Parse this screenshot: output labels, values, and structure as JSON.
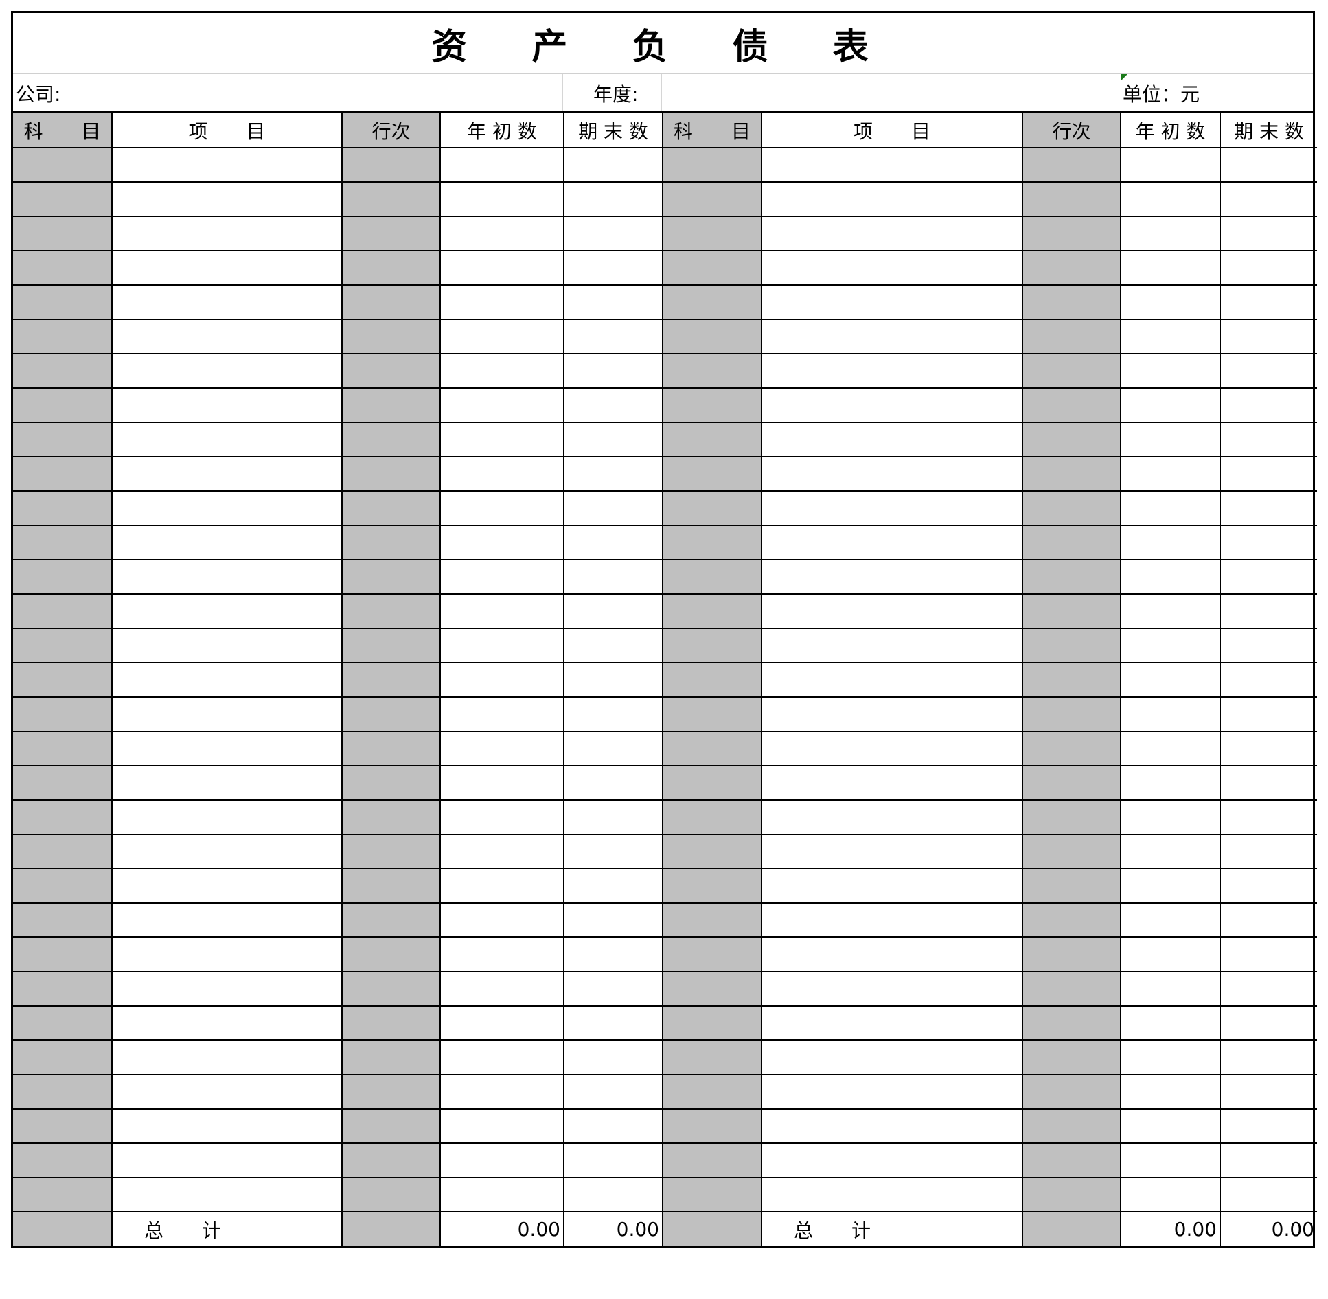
{
  "title": "资 产 负 债 表",
  "info": {
    "company_label": "公司:",
    "year_label": "年度:",
    "unit_label": "单位：元"
  },
  "headers": [
    "科　　目",
    "项　　目",
    "行次",
    "年 初 数",
    "期 末 数",
    "科　　目",
    "项　　目",
    "行次",
    "年 初 数",
    "期 末 数"
  ],
  "data_row_count": 31,
  "total_row": {
    "left_label": "总　　计",
    "left_begin": "0.00",
    "left_end": "0.00",
    "right_label": "总　　计",
    "right_begin": "0.00",
    "right_end": "0.00"
  },
  "colors": {
    "shaded_column": "#c0c0c0",
    "comment_marker": "#1a7a1a"
  }
}
